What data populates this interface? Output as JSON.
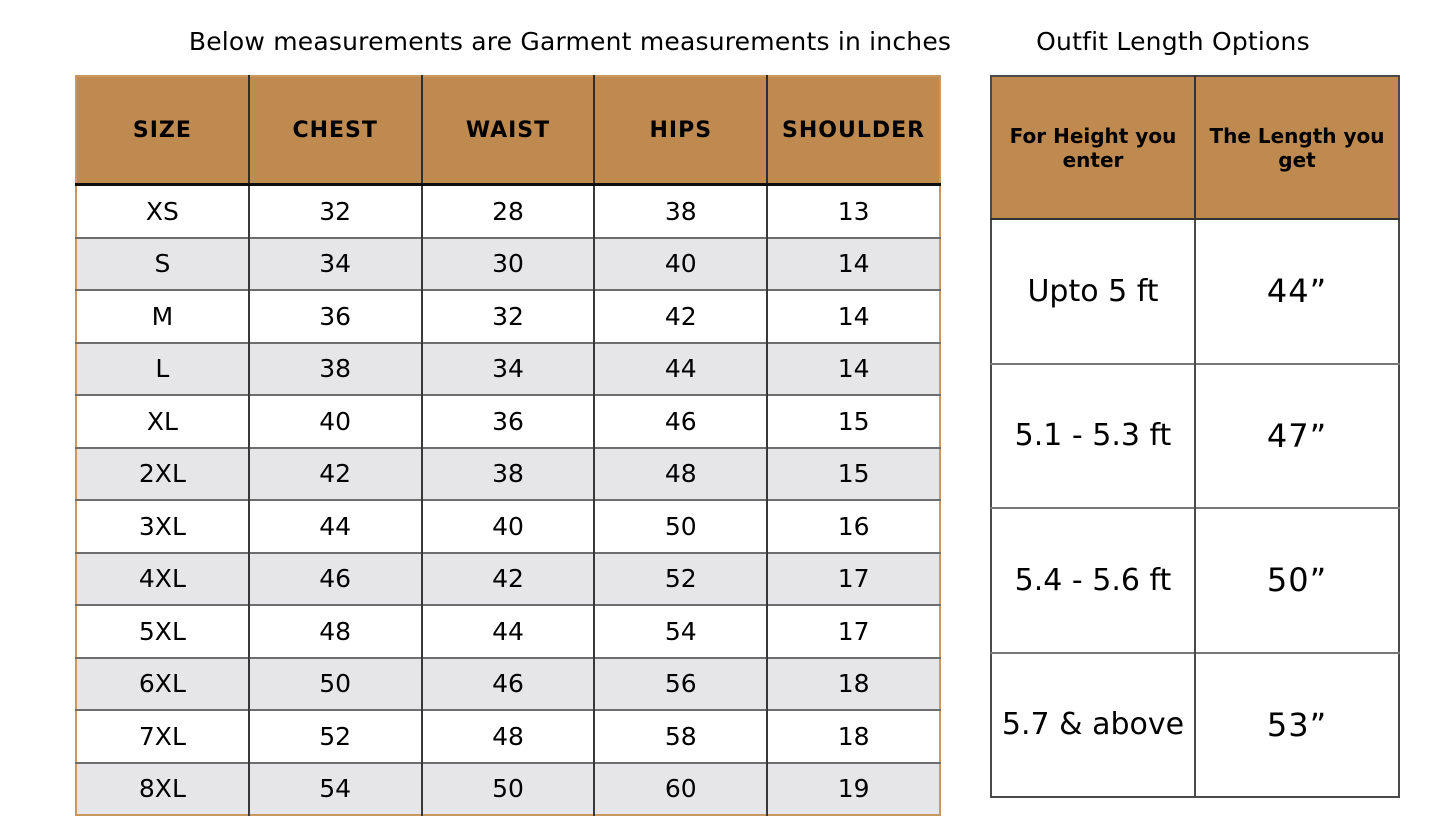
{
  "colors": {
    "header_brown": "#bf8a50",
    "row_alt_gray": "#e6e6e8",
    "row_white": "#ffffff",
    "outer_border_tan": "#c9975f",
    "grid_dark": "#383838",
    "row_divider_gray": "#6e6e6e",
    "text": "#000000",
    "background": "#ffffff"
  },
  "measurement_table": {
    "title": "Below measurements are Garment measurements in inches",
    "columns": [
      "SIZE",
      "CHEST",
      "WAIST",
      "HIPS",
      "SHOULDER"
    ],
    "rows": [
      {
        "size": "XS",
        "chest": "32",
        "waist": "28",
        "hips": "38",
        "shoulder": "13"
      },
      {
        "size": "S",
        "chest": "34",
        "waist": "30",
        "hips": "40",
        "shoulder": "14"
      },
      {
        "size": "M",
        "chest": "36",
        "waist": "32",
        "hips": "42",
        "shoulder": "14"
      },
      {
        "size": "L",
        "chest": "38",
        "waist": "34",
        "hips": "44",
        "shoulder": "14"
      },
      {
        "size": "XL",
        "chest": "40",
        "waist": "36",
        "hips": "46",
        "shoulder": "15"
      },
      {
        "size": "2XL",
        "chest": "42",
        "waist": "38",
        "hips": "48",
        "shoulder": "15"
      },
      {
        "size": "3XL",
        "chest": "44",
        "waist": "40",
        "hips": "50",
        "shoulder": "16"
      },
      {
        "size": "4XL",
        "chest": "46",
        "waist": "42",
        "hips": "52",
        "shoulder": "17"
      },
      {
        "size": "5XL",
        "chest": "48",
        "waist": "44",
        "hips": "54",
        "shoulder": "17"
      },
      {
        "size": "6XL",
        "chest": "50",
        "waist": "46",
        "hips": "56",
        "shoulder": "18"
      },
      {
        "size": "7XL",
        "chest": "52",
        "waist": "48",
        "hips": "58",
        "shoulder": "18"
      },
      {
        "size": "8XL",
        "chest": "54",
        "waist": "50",
        "hips": "60",
        "shoulder": "19"
      }
    ]
  },
  "length_table": {
    "title": "Outfit Length Options",
    "columns": [
      "For Height you enter",
      "The Length you get"
    ],
    "rows": [
      {
        "height": "Upto 5 ft",
        "length": "44”"
      },
      {
        "height": "5.1 - 5.3 ft",
        "length": "47”"
      },
      {
        "height": "5.4 - 5.6 ft",
        "length": "50”"
      },
      {
        "height": "5.7 & above",
        "length": "53”"
      }
    ]
  },
  "chart_data": [
    {
      "type": "table",
      "title": "Below measurements are Garment measurements in inches",
      "columns": [
        "SIZE",
        "CHEST",
        "WAIST",
        "HIPS",
        "SHOULDER"
      ],
      "rows": [
        [
          "XS",
          32,
          28,
          38,
          13
        ],
        [
          "S",
          34,
          30,
          40,
          14
        ],
        [
          "M",
          36,
          32,
          42,
          14
        ],
        [
          "L",
          38,
          34,
          44,
          14
        ],
        [
          "XL",
          40,
          36,
          46,
          15
        ],
        [
          "2XL",
          42,
          38,
          48,
          15
        ],
        [
          "3XL",
          44,
          40,
          50,
          16
        ],
        [
          "4XL",
          46,
          42,
          52,
          17
        ],
        [
          "5XL",
          48,
          44,
          54,
          17
        ],
        [
          "6XL",
          50,
          46,
          56,
          18
        ],
        [
          "7XL",
          52,
          48,
          58,
          18
        ],
        [
          "8XL",
          54,
          50,
          60,
          19
        ]
      ],
      "units": "inches"
    },
    {
      "type": "table",
      "title": "Outfit Length Options",
      "columns": [
        "For Height you enter",
        "The Length you get"
      ],
      "rows": [
        [
          "Upto 5 ft",
          "44”"
        ],
        [
          "5.1 - 5.3 ft",
          "47”"
        ],
        [
          "5.4 - 5.6 ft",
          "50”"
        ],
        [
          "5.7 & above",
          "53”"
        ]
      ]
    }
  ]
}
